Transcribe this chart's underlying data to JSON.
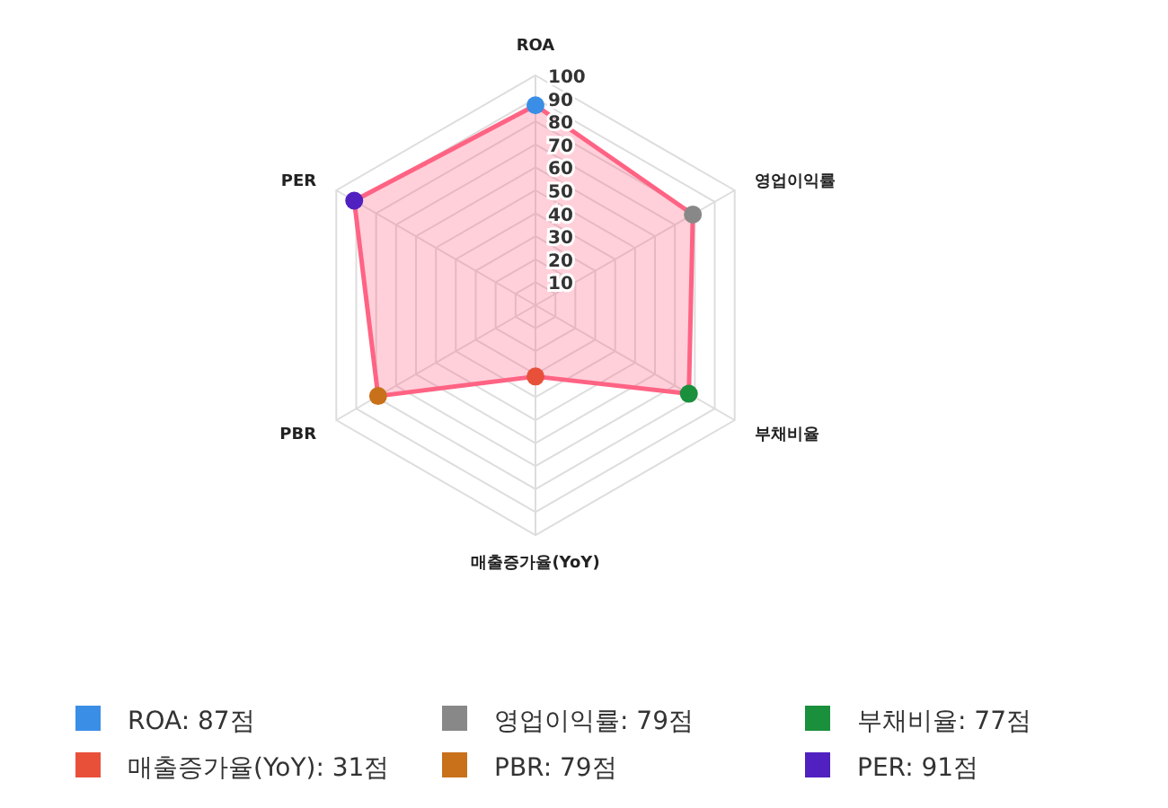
{
  "chart_data": {
    "type": "radar",
    "categories": [
      "ROA",
      "영업이익률",
      "부채비율",
      "매출증가율(YoY)",
      "PBR",
      "PER"
    ],
    "series": [
      {
        "color": "#ff6384",
        "values": [
          87,
          79,
          77,
          31,
          79,
          91
        ],
        "colors": [
          "#3a8ee6",
          "#888888",
          "#1a8f3c",
          "#e8503a",
          "#c8711a",
          "#5020c0"
        ]
      }
    ],
    "ylim": [
      0,
      100
    ],
    "yticks": [
      10,
      20,
      30,
      40,
      50,
      60,
      70,
      80,
      90,
      100
    ],
    "grid": true,
    "marker": "circle",
    "annotations": [
      "ROA: 87점",
      "영업이익률: 79점",
      "부채비율: 77점",
      "매출증가율(YoY): 31점",
      "PBR: 79점",
      "PER: 91점"
    ]
  }
}
